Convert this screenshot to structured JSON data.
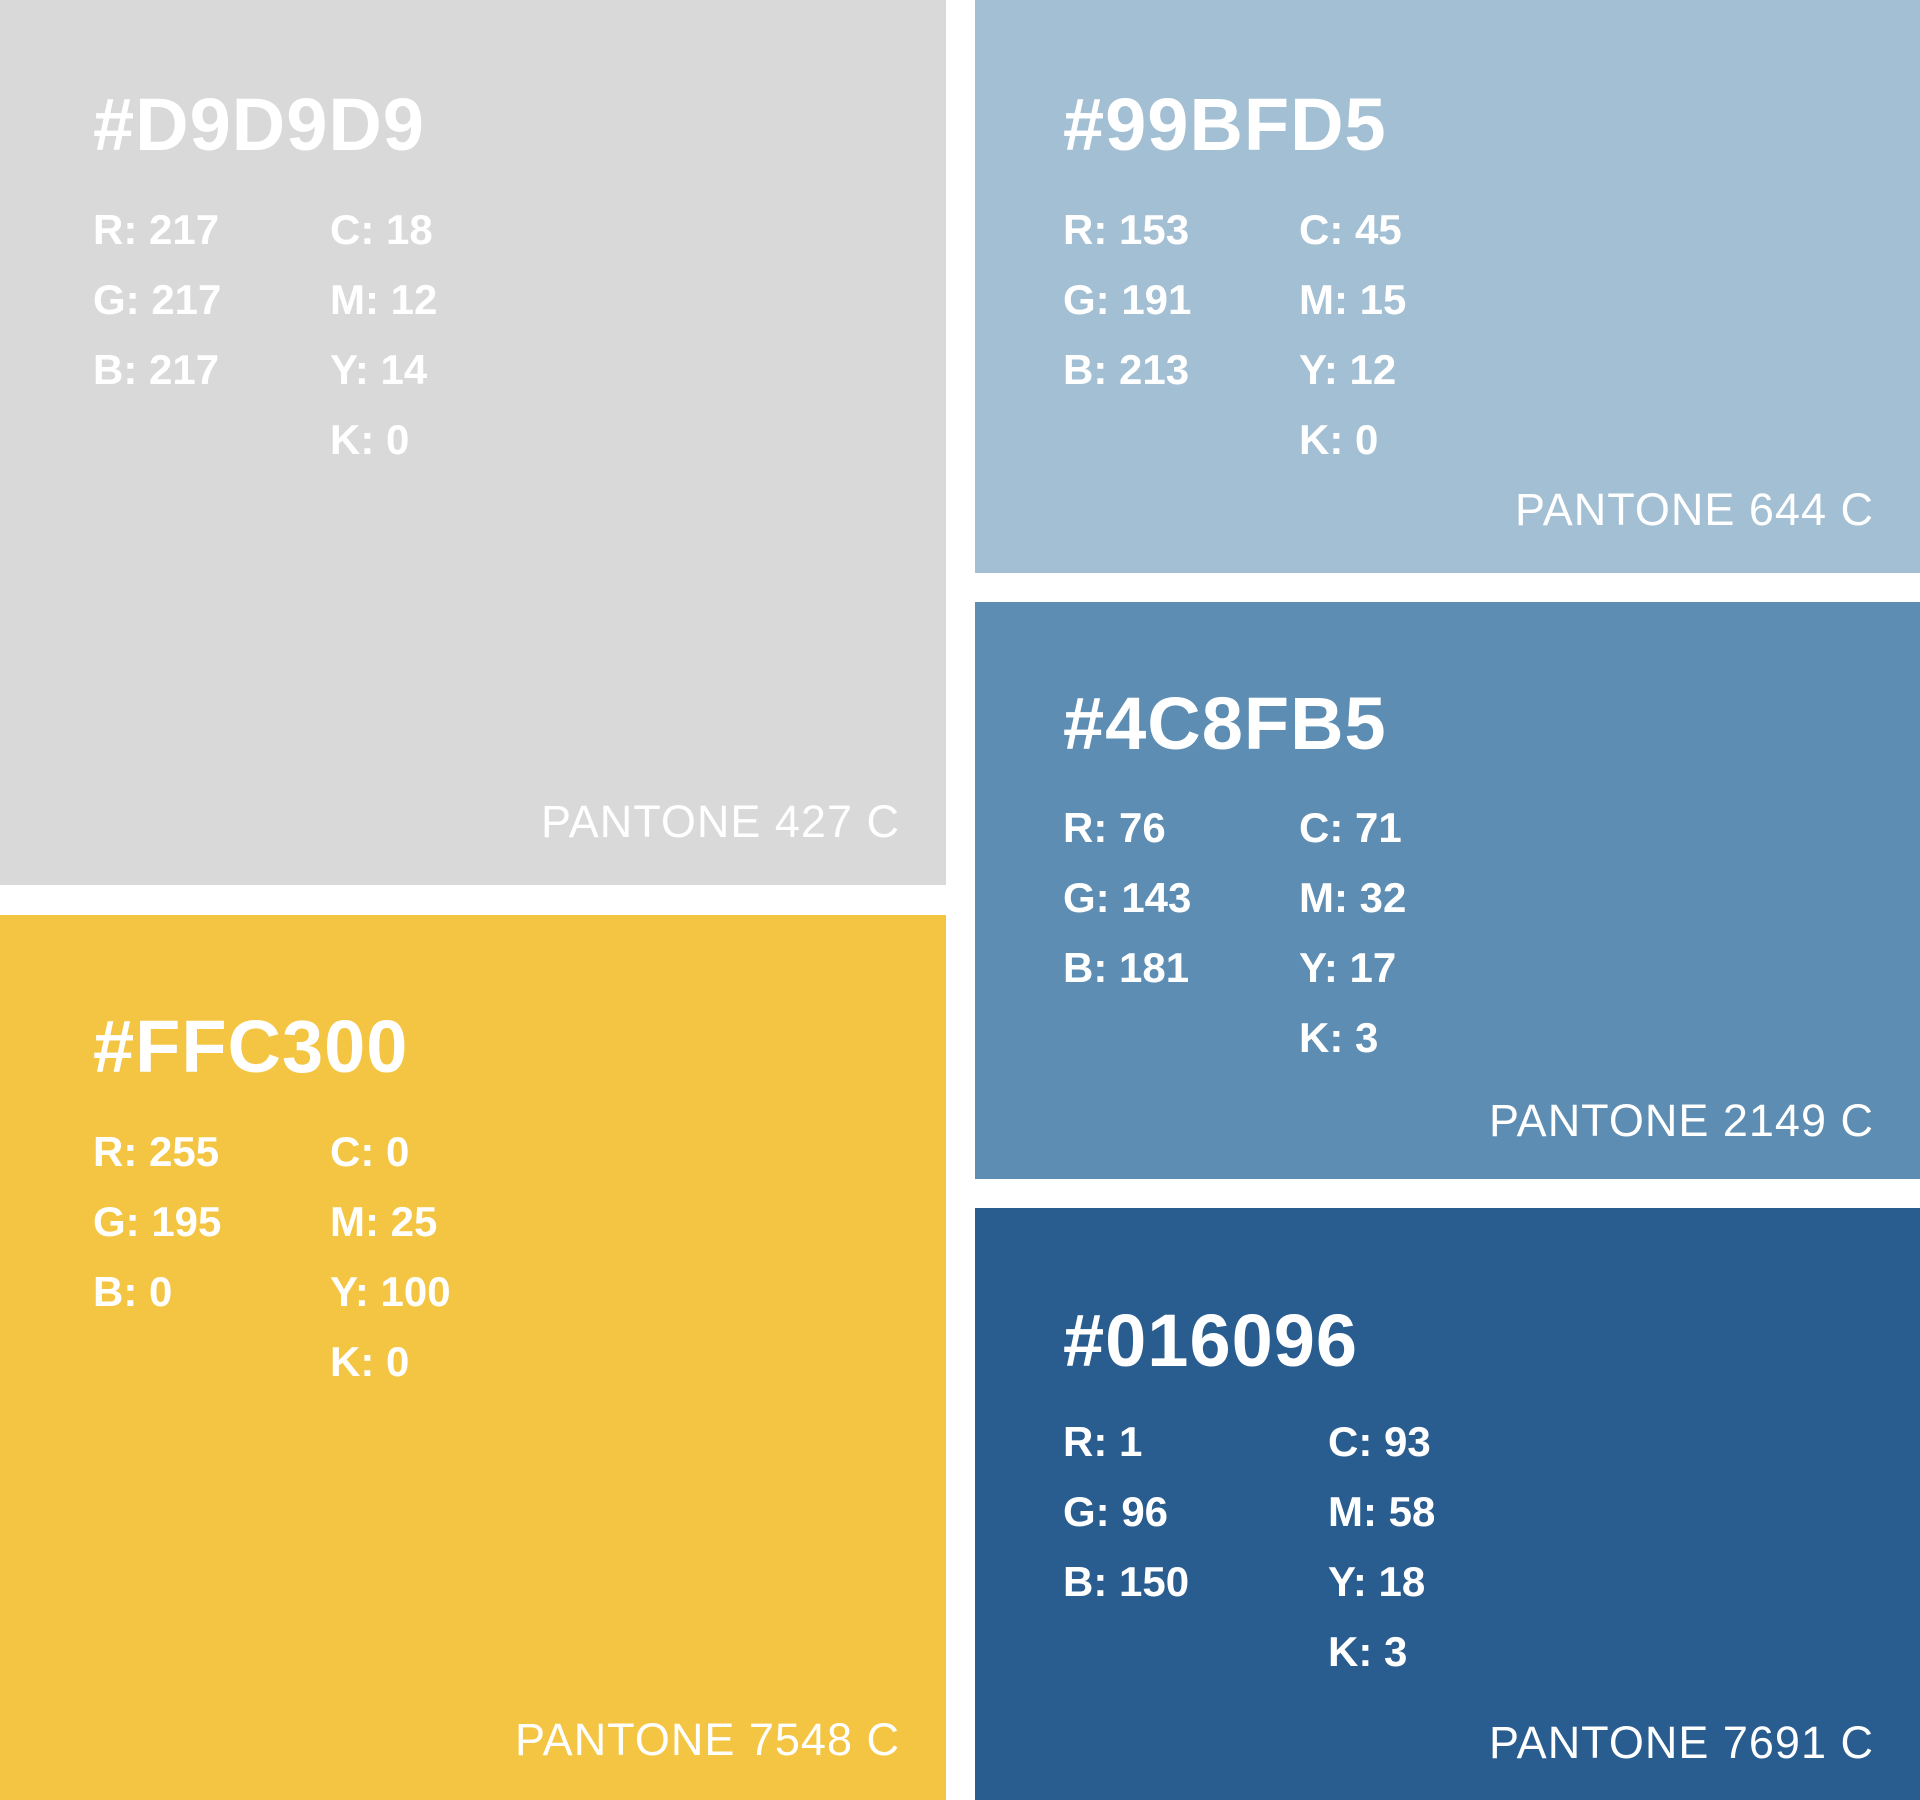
{
  "swatches": [
    {
      "hex": "#D9D9D9",
      "color": "#D9D9D9",
      "rgb": [
        "R: 217",
        "G: 217",
        "B: 217"
      ],
      "cmyk": [
        "C: 18",
        "M: 12",
        "Y: 14",
        "K: 0"
      ],
      "pantone": "PANTONE 427 C"
    },
    {
      "hex": "#FFC300",
      "color": "#F4C542",
      "rgb": [
        "R: 255",
        "G: 195",
        "B: 0"
      ],
      "cmyk": [
        "C: 0",
        "M: 25",
        "Y: 100",
        "K: 0"
      ],
      "pantone": "PANTONE 7548 C"
    },
    {
      "hex": "#99BFD5",
      "color": "#A3BFD4",
      "rgb": [
        "R: 153",
        "G: 191",
        "B: 213"
      ],
      "cmyk": [
        "C: 45",
        "M: 15",
        "Y: 12",
        "K: 0"
      ],
      "pantone": "PANTONE 644 C"
    },
    {
      "hex": "#4C8FB5",
      "color": "#5D8DB2",
      "rgb": [
        "R: 76",
        "G: 143",
        "B: 181"
      ],
      "cmyk": [
        "C: 71",
        "M: 32",
        "Y: 17",
        "K: 3"
      ],
      "pantone": "PANTONE 2149 C"
    },
    {
      "hex": "#016096",
      "color": "#295D90",
      "rgb": [
        "R: 1",
        "G: 96",
        "B: 150"
      ],
      "cmyk": [
        "C: 93",
        "M: 58",
        "Y: 18",
        "K: 3"
      ],
      "pantone": "PANTONE 7691 C"
    }
  ]
}
